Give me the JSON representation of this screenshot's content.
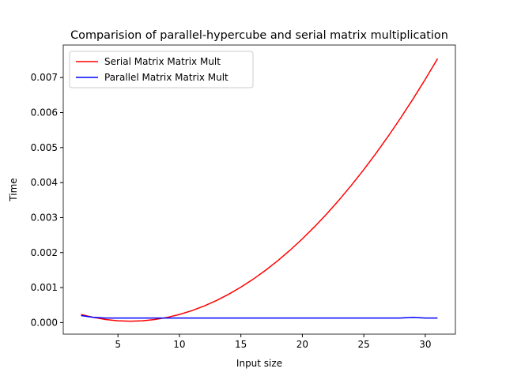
{
  "chart_data": {
    "type": "line",
    "title": "Comparision of parallel-hypercube and serial matrix multiplication",
    "xlabel": "Input size",
    "ylabel": "Time",
    "x": [
      2,
      3,
      4,
      5,
      6,
      7,
      8,
      9,
      10,
      11,
      12,
      13,
      14,
      15,
      16,
      17,
      18,
      19,
      20,
      21,
      22,
      23,
      24,
      25,
      26,
      27,
      28,
      29,
      30,
      31
    ],
    "series": [
      {
        "name": "Serial Matrix Matrix Mult",
        "color": "#ff0000",
        "values": [
          0.000232,
          0.000148,
          8.8e-05,
          5.2e-05,
          4e-05,
          5.2e-05,
          8.8e-05,
          0.000148,
          0.000232,
          0.00034,
          0.000472,
          0.000628,
          0.000808,
          0.001012,
          0.00124,
          0.001492,
          0.001768,
          0.002068,
          0.002392,
          0.00274,
          0.003112,
          0.003508,
          0.003928,
          0.004372,
          0.00484,
          0.005332,
          0.005848,
          0.006388,
          0.006952,
          0.00754
        ]
      },
      {
        "name": "Parallel Matrix Matrix Mult",
        "color": "#0000ff",
        "values": [
          0.0002,
          0.00015,
          0.00013,
          0.00013,
          0.00013,
          0.00013,
          0.00013,
          0.00013,
          0.00013,
          0.00013,
          0.00013,
          0.00013,
          0.00013,
          0.00013,
          0.00013,
          0.00013,
          0.00013,
          0.00013,
          0.00013,
          0.00013,
          0.00013,
          0.00013,
          0.00013,
          0.00013,
          0.00013,
          0.00013,
          0.00013,
          0.00015,
          0.00013,
          0.00013
        ]
      }
    ],
    "xlim": [
      0.55,
      32.45
    ],
    "ylim": [
      -0.00033,
      0.00793
    ],
    "xticks": [
      5,
      10,
      15,
      20,
      25,
      30
    ],
    "yticks": [
      {
        "value": 0,
        "label": "0.000"
      },
      {
        "value": 0.001,
        "label": "0.001"
      },
      {
        "value": 0.002,
        "label": "0.002"
      },
      {
        "value": 0.003,
        "label": "0.003"
      },
      {
        "value": 0.004,
        "label": "0.004"
      },
      {
        "value": 0.005,
        "label": "0.005"
      },
      {
        "value": 0.006,
        "label": "0.006"
      },
      {
        "value": 0.007,
        "label": "0.007"
      }
    ],
    "legend": "upper left",
    "grid": false
  }
}
